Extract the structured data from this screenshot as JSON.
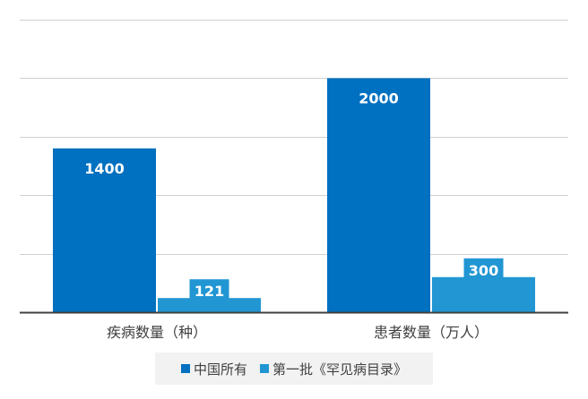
{
  "colors": {
    "series_0": "#0070c0",
    "series_1": "#2196d3",
    "grid": "#d0d0d0",
    "axis": "#404040",
    "tick_text": "#404040",
    "label_text": "#ffffff",
    "legend_bg": "#f2f2f2"
  },
  "chart_data": {
    "type": "bar",
    "title": "",
    "xlabel": "",
    "ylabel": "",
    "categories": [
      "疾病数量（种）",
      "患者数量（万人）"
    ],
    "series": [
      {
        "name": "中国所有",
        "values": [
          1400,
          2000
        ]
      },
      {
        "name": "第一批《罕见病目录》",
        "values": [
          121,
          300
        ]
      }
    ],
    "ylim": [
      0,
      2500
    ],
    "y_tick_step": 500,
    "y_tick_labels_visible": false,
    "grid": true,
    "data_labels": true,
    "legend_position": "bottom"
  }
}
